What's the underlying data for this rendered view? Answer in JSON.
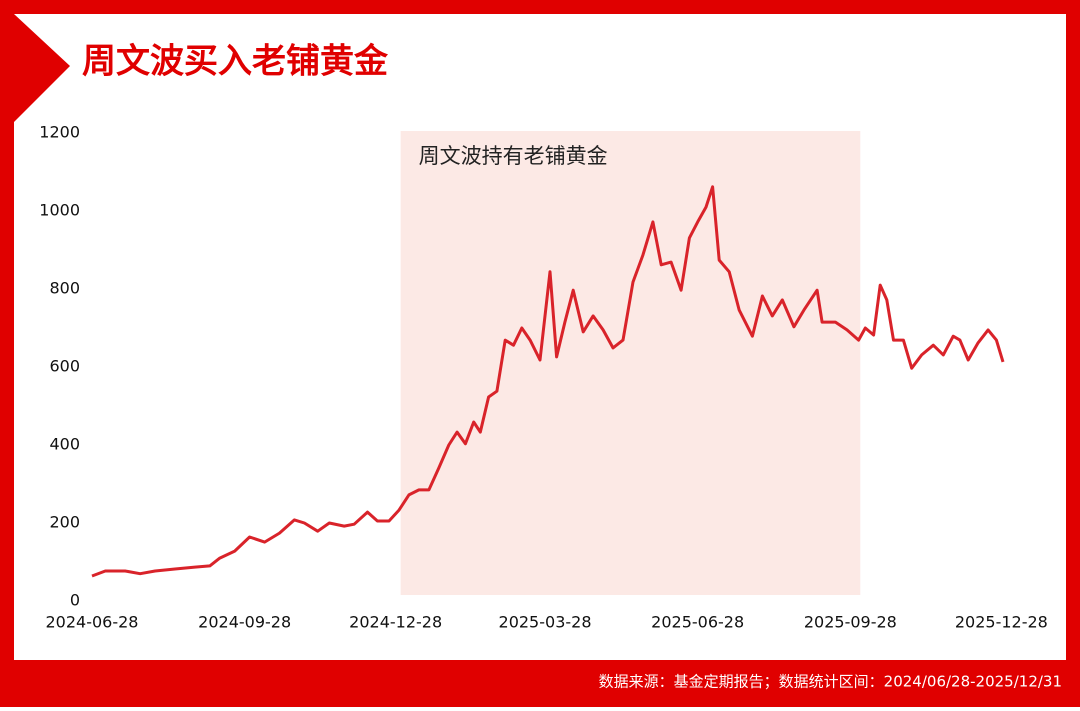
{
  "chart_data": {
    "type": "line",
    "title": "周文波买入老铺黄金",
    "source": "数据来源：基金定期报告；数据统计区间：2024/06/28-2025/12/31",
    "color": "#d9232a",
    "highlight": {
      "start": "2024-12-31",
      "end": "2025-10-04",
      "label": "周文波持有老铺黄金",
      "color": "#fce9e5"
    },
    "x": [
      "2024-06-28",
      "2024-07-06",
      "2024-07-18",
      "2024-07-27",
      "2024-08-05",
      "2024-08-17",
      "2024-08-29",
      "2024-09-07",
      "2024-09-13",
      "2024-09-22",
      "2024-10-01",
      "2024-10-10",
      "2024-10-19",
      "2024-10-28",
      "2024-11-03",
      "2024-11-11",
      "2024-11-18",
      "2024-11-27",
      "2024-12-03",
      "2024-12-11",
      "2024-12-17",
      "2024-12-24",
      "2024-12-30",
      "2025-01-05",
      "2025-01-11",
      "2025-01-17",
      "2025-01-23",
      "2025-01-29",
      "2025-02-03",
      "2025-02-08",
      "2025-02-13",
      "2025-02-17",
      "2025-02-22",
      "2025-02-27",
      "2025-03-04",
      "2025-03-09",
      "2025-03-14",
      "2025-03-19",
      "2025-03-25",
      "2025-03-31",
      "2025-04-04",
      "2025-04-09",
      "2025-04-14",
      "2025-04-20",
      "2025-04-26",
      "2025-05-02",
      "2025-05-08",
      "2025-05-14",
      "2025-05-20",
      "2025-05-26",
      "2025-06-01",
      "2025-06-06",
      "2025-06-12",
      "2025-06-18",
      "2025-06-23",
      "2025-06-28",
      "2025-07-03",
      "2025-07-07",
      "2025-07-11",
      "2025-07-17",
      "2025-07-23",
      "2025-07-31",
      "2025-08-06",
      "2025-08-12",
      "2025-08-18",
      "2025-08-25",
      "2025-08-31",
      "2025-09-08",
      "2025-09-11",
      "2025-09-19",
      "2025-09-26",
      "2025-10-03",
      "2025-10-07",
      "2025-10-12",
      "2025-10-16",
      "2025-10-20",
      "2025-10-24",
      "2025-10-30",
      "2025-11-04",
      "2025-11-10",
      "2025-11-17",
      "2025-11-23",
      "2025-11-29",
      "2025-12-03",
      "2025-12-08",
      "2025-12-14",
      "2025-12-20",
      "2025-12-25",
      "2025-12-29"
    ],
    "values": [
      64,
      77,
      77,
      70,
      77,
      82,
      87,
      90,
      110,
      128,
      164,
      151,
      174,
      208,
      200,
      179,
      200,
      192,
      197,
      228,
      205,
      205,
      233,
      272,
      285,
      285,
      341,
      400,
      433,
      403,
      459,
      433,
      523,
      538,
      669,
      656,
      700,
      669,
      618,
      844,
      626,
      715,
      797,
      690,
      731,
      695,
      649,
      669,
      818,
      887,
      972,
      862,
      869,
      797,
      931,
      972,
      1010,
      1062,
      874,
      844,
      746,
      679,
      782,
      731,
      772,
      703,
      746,
      797,
      715,
      715,
      695,
      669,
      700,
      682,
      810,
      772,
      669,
      669,
      597,
      631,
      656,
      631,
      679,
      669,
      618,
      662,
      695,
      669,
      613
    ],
    "xlim": [
      "2024-06-28",
      "2025-12-29"
    ],
    "xticks": [
      "2024-06-28",
      "2024-09-28",
      "2024-12-28",
      "2025-03-28",
      "2025-06-28",
      "2025-09-28",
      "2025-12-28"
    ],
    "ylim": [
      0,
      1200
    ],
    "yticks": [
      0,
      200,
      400,
      600,
      800,
      1000,
      1200
    ]
  }
}
